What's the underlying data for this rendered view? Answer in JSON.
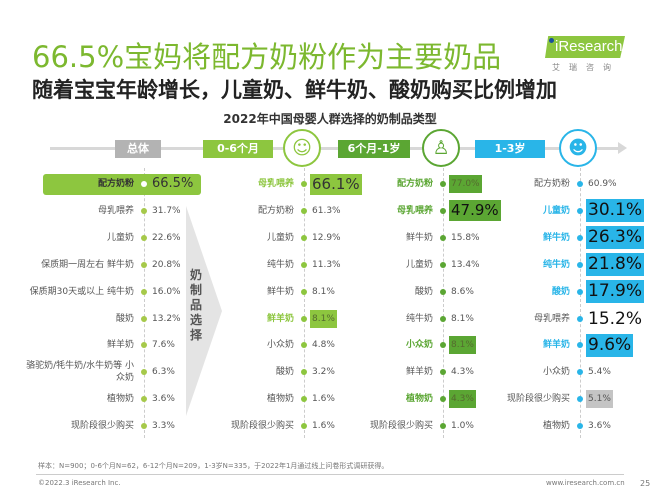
{
  "title": "66.5%宝妈将配方奶粉作为主要奶品",
  "subtitle": "随着宝宝年龄增长，儿童奶、鲜牛奶、酸奶购买比例增加",
  "chart_title": "2022年中国母婴人群选择的奶制品类型",
  "logo": {
    "text": "iResearch",
    "sub": "艾瑞咨询"
  },
  "arrow_label": "奶制品选择",
  "colors": {
    "green_light": "#8dc63f",
    "green_dark": "#5ba633",
    "blue": "#29b5e8",
    "grey": "#b3b3b3"
  },
  "columns": [
    {
      "stage": "总体",
      "color": "#b3b3b3",
      "icon": "none",
      "items": [
        {
          "label": "配方奶粉",
          "value": "66.5%",
          "style": "banner"
        },
        {
          "label": "母乳喂养",
          "value": "31.7%",
          "style": "plain"
        },
        {
          "label": "儿童奶",
          "value": "22.6%",
          "style": "plain"
        },
        {
          "label": "保质期一周左右 鲜牛奶",
          "value": "20.8%",
          "style": "plain"
        },
        {
          "label": "保质期30天或以上 纯牛奶",
          "value": "16.0%",
          "style": "plain"
        },
        {
          "label": "酸奶",
          "value": "13.2%",
          "style": "plain"
        },
        {
          "label": "鲜羊奶",
          "value": "7.6%",
          "style": "plain"
        },
        {
          "label": "骆驼奶/牦牛奶/水牛奶等 小众奶",
          "value": "6.3%",
          "style": "plain"
        },
        {
          "label": "植物奶",
          "value": "3.6%",
          "style": "plain"
        },
        {
          "label": "现阶段很少购买",
          "value": "3.3%",
          "style": "plain"
        }
      ]
    },
    {
      "stage": "0-6个月",
      "color": "#8dc63f",
      "icon": "swaddled-baby-icon",
      "items": [
        {
          "label": "母乳喂养",
          "value": "66.1%",
          "style": "box-big"
        },
        {
          "label": "配方奶粉",
          "value": "61.3%",
          "style": "plain"
        },
        {
          "label": "儿童奶",
          "value": "12.9%",
          "style": "plain"
        },
        {
          "label": "纯牛奶",
          "value": "11.3%",
          "style": "plain"
        },
        {
          "label": "鲜牛奶",
          "value": "8.1%",
          "style": "plain"
        },
        {
          "label": "鲜羊奶",
          "value": "8.1%",
          "style": "box-small"
        },
        {
          "label": "小众奶",
          "value": "4.8%",
          "style": "plain"
        },
        {
          "label": "酸奶",
          "value": "3.2%",
          "style": "plain"
        },
        {
          "label": "植物奶",
          "value": "1.6%",
          "style": "plain"
        },
        {
          "label": "现阶段很少购买",
          "value": "1.6%",
          "style": "plain"
        }
      ]
    },
    {
      "stage": "6个月-1岁",
      "color": "#5ba633",
      "icon": "sitting-baby-icon",
      "items": [
        {
          "label": "配方奶粉",
          "value": "77.0%",
          "style": "box-small"
        },
        {
          "label": "母乳喂养",
          "value": "47.9%",
          "style": "box-big"
        },
        {
          "label": "鲜牛奶",
          "value": "15.8%",
          "style": "plain"
        },
        {
          "label": "儿童奶",
          "value": "13.4%",
          "style": "plain"
        },
        {
          "label": "酸奶",
          "value": "8.6%",
          "style": "plain"
        },
        {
          "label": "纯牛奶",
          "value": "8.1%",
          "style": "plain"
        },
        {
          "label": "小众奶",
          "value": "8.1%",
          "style": "box-small"
        },
        {
          "label": "鲜羊奶",
          "value": "4.3%",
          "style": "plain"
        },
        {
          "label": "植物奶",
          "value": "4.3%",
          "style": "box-small"
        },
        {
          "label": "现阶段很少购买",
          "value": "1.0%",
          "style": "plain"
        }
      ]
    },
    {
      "stage": "1-3岁",
      "color": "#29b5e8",
      "icon": "toddler-face-icon",
      "items": [
        {
          "label": "配方奶粉",
          "value": "60.9%",
          "style": "plain"
        },
        {
          "label": "儿童奶",
          "value": "30.1%",
          "style": "box-big"
        },
        {
          "label": "鲜牛奶",
          "value": "26.3%",
          "style": "box-big"
        },
        {
          "label": "纯牛奶",
          "value": "21.8%",
          "style": "box-big"
        },
        {
          "label": "酸奶",
          "value": "17.9%",
          "style": "box-big"
        },
        {
          "label": "母乳喂养",
          "value": "15.2%",
          "style": "big"
        },
        {
          "label": "鲜羊奶",
          "value": "9.6%",
          "style": "box-big"
        },
        {
          "label": "小众奶",
          "value": "5.4%",
          "style": "plain"
        },
        {
          "label": "现阶段很少购买",
          "value": "5.1%",
          "style": "box-grey"
        },
        {
          "label": "植物奶",
          "value": "3.6%",
          "style": "plain"
        }
      ]
    }
  ],
  "footnote": "样本：N=900；0-6个月N=62，6-12个月N=209，1-3岁N=335，于2022年1月通过线上问卷形式调研获得。",
  "copyright": "©2022.3 iResearch Inc.",
  "website": "www.iresearch.com.cn",
  "page_number": "25"
}
